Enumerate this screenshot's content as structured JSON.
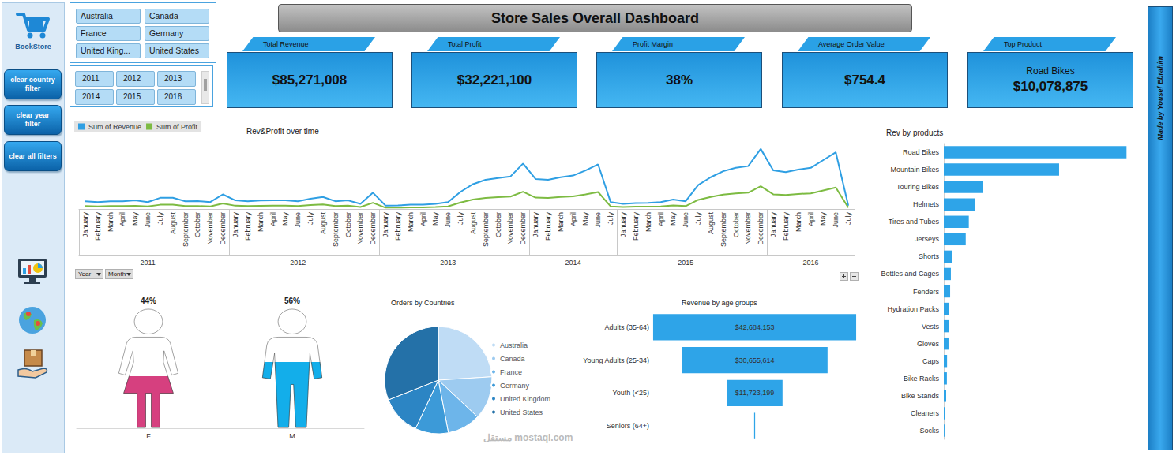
{
  "header": {
    "logo": "BookStore",
    "title": "Store Sales Overall Dashboard",
    "credit": "Made by Yousef Ebrahim",
    "watermark": "مستقل mostaql.com"
  },
  "buttons": [
    "clear country filter",
    "clear year filter",
    "clear all filters"
  ],
  "slicers": {
    "countries": [
      "Australia",
      "Canada",
      "France",
      "Germany",
      "United King...",
      "United States"
    ],
    "years": [
      "2011",
      "2012",
      "2013",
      "2014",
      "2015",
      "2016"
    ]
  },
  "kpis": [
    {
      "label": "Total Revenue",
      "value": "$85,271,008"
    },
    {
      "label": "Total Profit",
      "value": "$32,221,100"
    },
    {
      "label": "Profit Margin",
      "value": "38%"
    },
    {
      "label": "Average Order Value",
      "value": "$754.4"
    },
    {
      "label": "Top Product",
      "sub": "Road Bikes",
      "value": "$10,078,875"
    }
  ],
  "chart_data": [
    {
      "type": "line",
      "title": "Rev&Profit over time",
      "categories": [
        "January",
        "February",
        "March",
        "April",
        "May",
        "June",
        "July",
        "August",
        "September",
        "October",
        "November",
        "December",
        "January",
        "February",
        "March",
        "April",
        "May",
        "June",
        "July",
        "August",
        "September",
        "October",
        "November",
        "December",
        "January",
        "February",
        "March",
        "April",
        "May",
        "June",
        "July",
        "August",
        "September",
        "October",
        "November",
        "December",
        "January",
        "February",
        "March",
        "April",
        "May",
        "June",
        "July",
        "January",
        "February",
        "March",
        "April",
        "May",
        "June",
        "July",
        "August",
        "September",
        "October",
        "November",
        "December",
        "January",
        "February",
        "March",
        "April",
        "May",
        "June",
        "July"
      ],
      "x_groups": [
        "2011",
        "2011",
        "2011",
        "2011",
        "2011",
        "2011",
        "2011",
        "2011",
        "2011",
        "2011",
        "2011",
        "2011",
        "2012",
        "2012",
        "2012",
        "2012",
        "2012",
        "2012",
        "2012",
        "2012",
        "2012",
        "2012",
        "2012",
        "2012",
        "2013",
        "2013",
        "2013",
        "2013",
        "2013",
        "2013",
        "2013",
        "2013",
        "2013",
        "2013",
        "2013",
        "2013",
        "2014",
        "2014",
        "2014",
        "2014",
        "2014",
        "2014",
        "2014",
        "2015",
        "2015",
        "2015",
        "2015",
        "2015",
        "2015",
        "2015",
        "2015",
        "2015",
        "2015",
        "2015",
        "2015",
        "2016",
        "2016",
        "2016",
        "2016",
        "2016",
        "2016",
        "2016"
      ],
      "series": [
        {
          "name": "Sum of Revenue",
          "color": "#2f9fe3",
          "values": [
            563000,
            500000,
            563000,
            560000,
            625000,
            500000,
            812000,
            815000,
            565000,
            570000,
            505000,
            1063000,
            625000,
            563000,
            620000,
            630000,
            628000,
            560000,
            750000,
            875000,
            565000,
            625000,
            375000,
            1188000,
            250000,
            255000,
            312000,
            318000,
            375000,
            500000,
            1250000,
            1812000,
            2125000,
            2250000,
            2375000,
            3312000,
            2188000,
            2125000,
            2312000,
            2438000,
            2812000,
            3250000,
            500000,
            375000,
            438000,
            440000,
            500000,
            688000,
            562000,
            1750000,
            2312000,
            2750000,
            3000000,
            3125000,
            4375000,
            2812000,
            2688000,
            2875000,
            3000000,
            3562000,
            4125000,
            250000
          ]
        },
        {
          "name": "Sum of Profit",
          "color": "#7dbb42",
          "values": [
            214000,
            190000,
            214000,
            213000,
            237000,
            190000,
            309000,
            310000,
            215000,
            217000,
            192000,
            404000,
            238000,
            214000,
            236000,
            239000,
            239000,
            213000,
            285000,
            333000,
            215000,
            238000,
            143000,
            451000,
            95000,
            97000,
            119000,
            121000,
            143000,
            190000,
            475000,
            689000,
            808000,
            855000,
            903000,
            1259000,
            831000,
            808000,
            879000,
            926000,
            1069000,
            1235000,
            190000,
            143000,
            166000,
            167000,
            190000,
            261000,
            214000,
            665000,
            879000,
            1045000,
            1140000,
            1188000,
            1663000,
            1069000,
            1021000,
            1093000,
            1140000,
            1354000,
            1568000,
            95000
          ]
        }
      ],
      "ylim": [
        0,
        5000000
      ],
      "tick_labels": "x",
      "legend": "top-left",
      "field_buttons": [
        "Year",
        "Month"
      ]
    },
    {
      "type": "bar",
      "title": "Rev by products",
      "orientation": "horizontal",
      "categories": [
        "Road Bikes",
        "Mountain Bikes",
        "Touring Bikes",
        "Helmets",
        "Tires and Tubes",
        "Jerseys",
        "Shorts",
        "Bottles and Cages",
        "Fenders",
        "Hydration Packs",
        "Vests",
        "Gloves",
        "Caps",
        "Bike Racks",
        "Bike Stands",
        "Cleaners",
        "Socks"
      ],
      "values": [
        10078875,
        6360000,
        2160000,
        1730000,
        1380000,
        1210000,
        480000,
        390000,
        350000,
        300000,
        270000,
        260000,
        180000,
        170000,
        130000,
        80000,
        40000
      ],
      "color": "#2ea4e8",
      "xlim": [
        0,
        10500000
      ],
      "tick_labels": "y"
    },
    {
      "type": "pictorial",
      "categories": [
        "F",
        "M"
      ],
      "values": [
        44,
        56
      ],
      "value_labels": [
        "44%",
        "56%"
      ],
      "colors": [
        "#d6407f",
        "#13aeea"
      ],
      "ylim": [
        0,
        100
      ],
      "data_labels": true,
      "tick_labels": "x"
    },
    {
      "type": "pie",
      "title": "Orders by Countries",
      "categories": [
        "Australia",
        "Canada",
        "France",
        "Germany",
        "United Kingdom",
        "United States"
      ],
      "values": [
        24,
        13,
        10,
        10,
        12,
        31
      ],
      "colors": [
        "#bfdcf5",
        "#9dcbf0",
        "#6db5ea",
        "#3c9ad8",
        "#2c85c4",
        "#2471a8"
      ],
      "legend": "right"
    },
    {
      "type": "funnel",
      "title": "Revenue by age groups",
      "orientation": "horizontal",
      "categories": [
        "Adults (35-64)",
        "Young Adults (25-34)",
        "Youth (<25)",
        "Seniors (64+)"
      ],
      "values": [
        42684153,
        30655614,
        11723199,
        208042
      ],
      "value_labels": [
        "$42,684,153",
        "$30,655,614",
        "$11,723,199",
        null
      ],
      "color": "#2ea4e8",
      "xlim": [
        0,
        43000000
      ],
      "data_labels": true,
      "tick_labels": "y"
    }
  ]
}
